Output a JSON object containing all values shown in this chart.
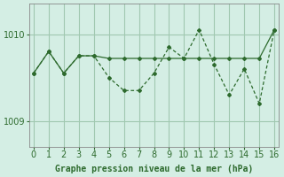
{
  "series1_x": [
    0,
    1,
    2,
    3,
    4,
    5,
    6,
    7,
    8,
    9,
    10,
    11,
    12,
    13,
    14,
    15,
    16
  ],
  "series1_y": [
    1009.55,
    1009.8,
    1009.55,
    1009.75,
    1009.75,
    1009.72,
    1009.72,
    1009.72,
    1009.72,
    1009.72,
    1009.72,
    1009.72,
    1009.72,
    1009.72,
    1009.72,
    1009.72,
    1010.05
  ],
  "series2_x": [
    0,
    1,
    2,
    3,
    4,
    5,
    6,
    7,
    8,
    9,
    10,
    11,
    12,
    13,
    14,
    15,
    16
  ],
  "series2_y": [
    1009.55,
    1009.8,
    1009.55,
    1009.75,
    1009.75,
    1009.5,
    1009.35,
    1009.35,
    1009.55,
    1009.85,
    1009.72,
    1010.05,
    1009.65,
    1009.3,
    1009.6,
    1009.2,
    1010.05
  ],
  "line_color": "#2d6a2d",
  "marker_color": "#2d6a2d",
  "bg_color": "#d4eee4",
  "grid_color": "#a0c8b0",
  "xlabel": "Graphe pression niveau de la mer (hPa)",
  "xlabel_fontsize": 7,
  "ylabel_ticks": [
    1009,
    1010
  ],
  "xticks": [
    0,
    1,
    2,
    3,
    4,
    5,
    6,
    7,
    8,
    9,
    10,
    11,
    12,
    13,
    14,
    15,
    16
  ],
  "ylim": [
    1008.7,
    1010.35
  ],
  "xlim": [
    -0.3,
    16.3
  ]
}
